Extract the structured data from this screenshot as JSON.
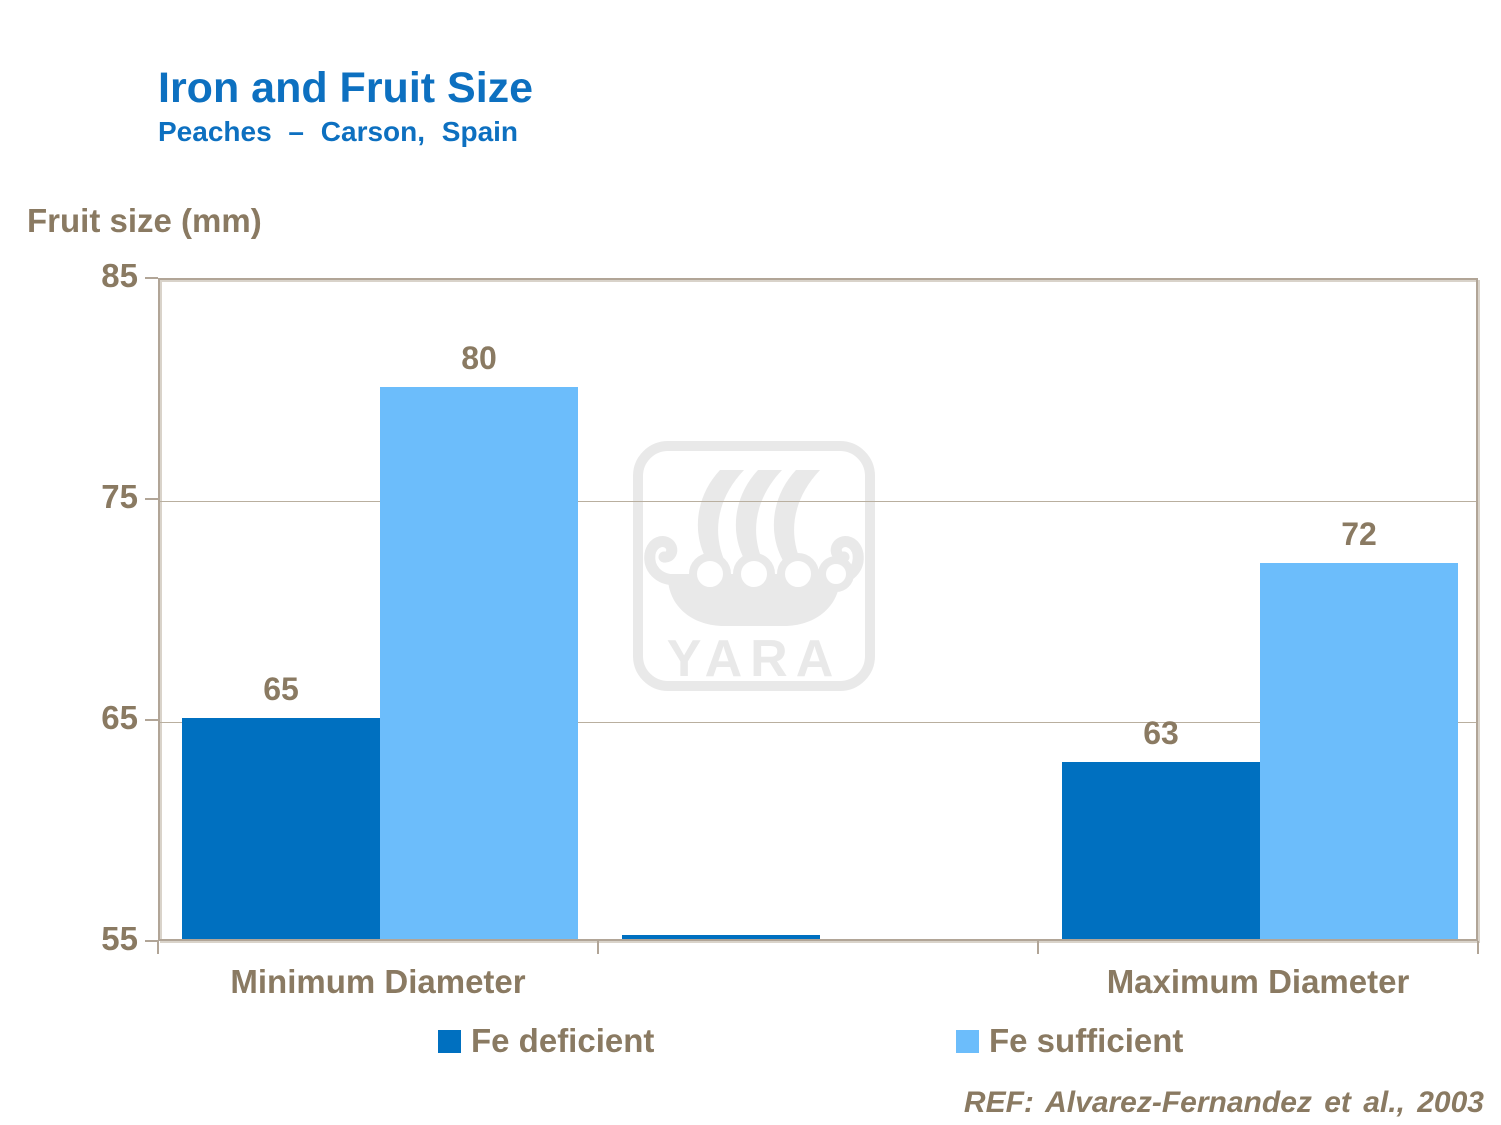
{
  "slide": {
    "title": "Iron and Fruit Size",
    "subtitle": "Peaches – Carson, Spain",
    "reference": "REF: Alvarez-Fernandez et al., 2003"
  },
  "colors": {
    "title_blue": "#0d70c0",
    "fe_deficient_blue": "#0070c0",
    "fe_sufficient_blue": "#6cbdfb",
    "taupe_text": "#8a7a62",
    "axis_border": "#b1a597",
    "gridline": "#b9af9f",
    "watermark_gray": "#e9e9e9"
  },
  "watermark": {
    "name": "yara-logo",
    "text": "YARA"
  },
  "decor": {
    "baseline_sliver": true
  },
  "chart_data": {
    "type": "bar",
    "title": "Iron and Fruit Size — Peaches – Carson, Spain",
    "ylabel": "Fruit size (mm)",
    "xlabel": "",
    "categories": [
      "Minimum Diameter",
      "Maximum Diameter"
    ],
    "series": [
      {
        "name": "Fe deficient",
        "color": "#0070c0",
        "values": [
          65,
          63
        ]
      },
      {
        "name": "Fe sufficient",
        "color": "#6cbdfb",
        "values": [
          80,
          72
        ]
      }
    ],
    "ylim": [
      55,
      85
    ],
    "yticks": [
      55,
      65,
      75,
      85
    ],
    "grid": true,
    "legend_position": "bottom"
  }
}
